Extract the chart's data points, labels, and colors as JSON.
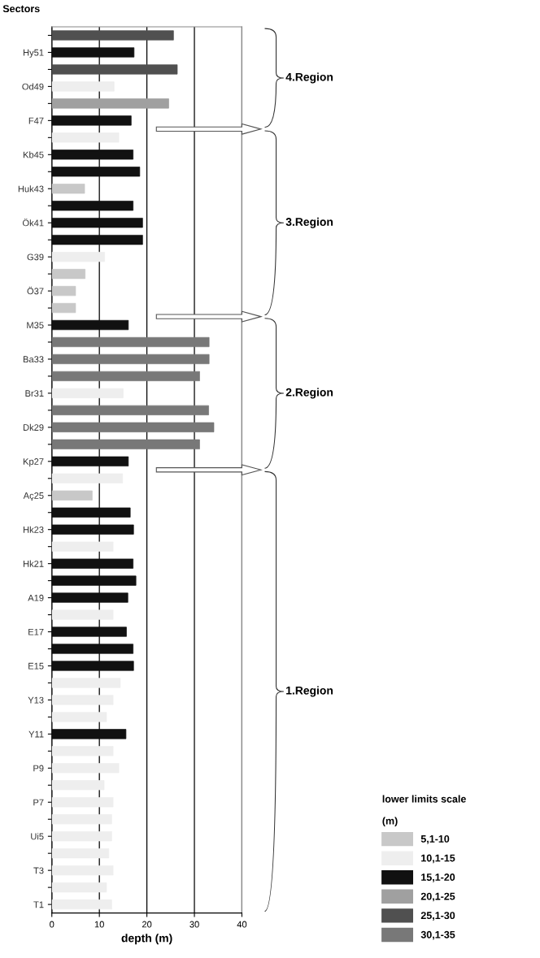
{
  "chart_data": {
    "type": "bar",
    "orientation": "horizontal",
    "ylabel": "Sectors",
    "xlabel": "depth (m)",
    "categories": [
      null,
      "Hy51",
      null,
      "Od49",
      null,
      "F47",
      null,
      "Kb45",
      null,
      "Huk43",
      null,
      "Ök41",
      null,
      "G39",
      null,
      "Ö37",
      null,
      "M35",
      null,
      "Ba33",
      null,
      "Br31",
      null,
      "Dk29",
      null,
      "Kp27",
      null,
      "Aç25",
      null,
      "Hk23",
      null,
      "Hk21",
      null,
      "A19",
      null,
      "E17",
      null,
      "E15",
      null,
      "Y13",
      null,
      "Y11",
      null,
      "P9",
      null,
      "P7",
      null,
      "Ui5",
      null,
      "T3",
      null,
      "T1"
    ],
    "series": [
      {
        "name": "5,1-10",
        "color": "#c8c8c8",
        "values": [
          null,
          null,
          null,
          null,
          null,
          null,
          null,
          null,
          null,
          6.9,
          null,
          null,
          null,
          null,
          7.0,
          5.0,
          5.0,
          null,
          null,
          null,
          null,
          null,
          null,
          null,
          null,
          null,
          null,
          8.5,
          null,
          null,
          null,
          null,
          null,
          null,
          null,
          null,
          null,
          null,
          null,
          null,
          null,
          null,
          null,
          null,
          null,
          null,
          null,
          null,
          null,
          null,
          null,
          null
        ]
      },
      {
        "name": "10,1-15",
        "color": "#eeeeee",
        "values": [
          null,
          null,
          null,
          13.1,
          null,
          null,
          14.1,
          null,
          null,
          null,
          null,
          null,
          null,
          11.1,
          null,
          null,
          null,
          null,
          null,
          null,
          null,
          15.0,
          null,
          null,
          null,
          null,
          14.9,
          null,
          null,
          null,
          12.9,
          null,
          null,
          null,
          12.9,
          null,
          null,
          null,
          14.4,
          12.9,
          11.5,
          null,
          12.9,
          14.1,
          11.0,
          12.9,
          12.6,
          12.6,
          12.0,
          12.9,
          11.5,
          12.6
        ]
      },
      {
        "name": "15,1-20",
        "color": "#111111",
        "values": [
          null,
          17.3,
          null,
          null,
          null,
          16.7,
          null,
          17.1,
          18.5,
          null,
          17.1,
          19.1,
          19.1,
          null,
          null,
          null,
          null,
          16.1,
          null,
          null,
          null,
          null,
          null,
          null,
          null,
          16.1,
          null,
          null,
          16.5,
          17.2,
          null,
          17.1,
          17.7,
          16.0,
          null,
          15.7,
          17.1,
          17.2,
          null,
          null,
          null,
          15.6,
          null,
          null,
          null,
          null,
          null,
          null,
          null,
          null,
          null,
          null
        ]
      },
      {
        "name": "20,1-25",
        "color": "#a0a0a0",
        "values": [
          null,
          null,
          null,
          null,
          24.6,
          null,
          null,
          null,
          null,
          null,
          null,
          null,
          null,
          null,
          null,
          null,
          null,
          null,
          null,
          null,
          null,
          null,
          null,
          null,
          null,
          null,
          null,
          null,
          null,
          null,
          null,
          null,
          null,
          null,
          null,
          null,
          null,
          null,
          null,
          null,
          null,
          null,
          null,
          null,
          null,
          null,
          null,
          null,
          null,
          null,
          null,
          null
        ]
      },
      {
        "name": "25,1-30",
        "color": "#505050",
        "values": [
          25.6,
          null,
          26.4,
          null,
          null,
          null,
          null,
          null,
          null,
          null,
          null,
          null,
          null,
          null,
          null,
          null,
          null,
          null,
          null,
          null,
          null,
          null,
          null,
          null,
          null,
          null,
          null,
          null,
          null,
          null,
          null,
          null,
          null,
          null,
          null,
          null,
          null,
          null,
          null,
          null,
          null,
          null,
          null,
          null,
          null,
          null,
          null,
          null,
          null,
          null,
          null,
          null
        ]
      },
      {
        "name": "30,1-35",
        "color": "#787878",
        "values": [
          null,
          null,
          null,
          null,
          null,
          null,
          null,
          null,
          null,
          null,
          null,
          null,
          null,
          null,
          null,
          null,
          null,
          null,
          33.1,
          33.1,
          31.1,
          null,
          33.0,
          34.1,
          31.1,
          null,
          null,
          null,
          null,
          null,
          null,
          null,
          null,
          null,
          null,
          null,
          null,
          null,
          null,
          null,
          null,
          null,
          null,
          null,
          null,
          null,
          null,
          null,
          null,
          null,
          null,
          null
        ]
      }
    ],
    "xlim": [
      0,
      40
    ],
    "xticks": [
      0,
      10,
      20,
      30,
      40
    ],
    "grid": "x",
    "legend": "bottom right",
    "legend_title": "lower limits scale\n\n(m)",
    "annotations": [
      "4.Region",
      "3.Region",
      "2.Region",
      "1.Region"
    ]
  }
}
